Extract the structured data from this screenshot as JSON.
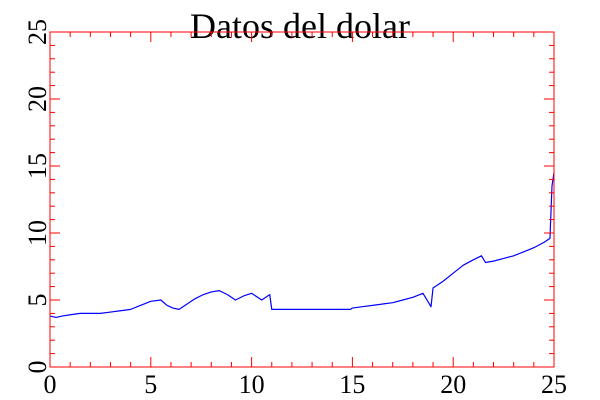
{
  "chart_data": {
    "type": "line",
    "title": "Datos del dolar",
    "xlabel": "",
    "ylabel": "",
    "xlim": [
      0,
      25
    ],
    "ylim": [
      0,
      25
    ],
    "x_ticks": [
      "0",
      "5",
      "10",
      "15",
      "20",
      "25"
    ],
    "y_ticks": [
      "0",
      "5",
      "10",
      "15",
      "20",
      "25"
    ],
    "grid": false,
    "legend": "none",
    "colors": {
      "series": "#0000ff",
      "axes": "#ff0000",
      "text": "#000000",
      "background": "#ffffff"
    },
    "series": [
      {
        "x": [
          0,
          0.3,
          0.6,
          1,
          1.5,
          2,
          2.5,
          3,
          3.5,
          4,
          4.5,
          5,
          5.5,
          5.8,
          6.1,
          6.4,
          6.8,
          7.2,
          7.6,
          8,
          8.4,
          8.8,
          9.2,
          9.6,
          10,
          10.5,
          10.9,
          11,
          11.5,
          12,
          12.5,
          13,
          13.5,
          14,
          14.5,
          14.9,
          15,
          15.5,
          16,
          16.5,
          17,
          17.5,
          18,
          18.5,
          18.9,
          19,
          19.5,
          20,
          20.5,
          21,
          21.4,
          21.6,
          22,
          22.5,
          23,
          23.5,
          24,
          24.5,
          24.8,
          24.9,
          25
        ],
        "y": [
          3.8,
          3.7,
          3.8,
          3.9,
          4.0,
          4.0,
          4.0,
          4.1,
          4.2,
          4.3,
          4.6,
          4.9,
          5.0,
          4.6,
          4.4,
          4.3,
          4.7,
          5.1,
          5.4,
          5.6,
          5.7,
          5.4,
          5.0,
          5.3,
          5.5,
          5.0,
          5.4,
          4.3,
          4.3,
          4.3,
          4.3,
          4.3,
          4.3,
          4.3,
          4.3,
          4.3,
          4.4,
          4.5,
          4.6,
          4.7,
          4.8,
          5.0,
          5.2,
          5.5,
          4.5,
          5.9,
          6.4,
          7.0,
          7.6,
          8.0,
          8.3,
          7.8,
          7.9,
          8.1,
          8.3,
          8.6,
          8.9,
          9.3,
          9.6,
          13.5,
          14.5
        ]
      }
    ]
  }
}
